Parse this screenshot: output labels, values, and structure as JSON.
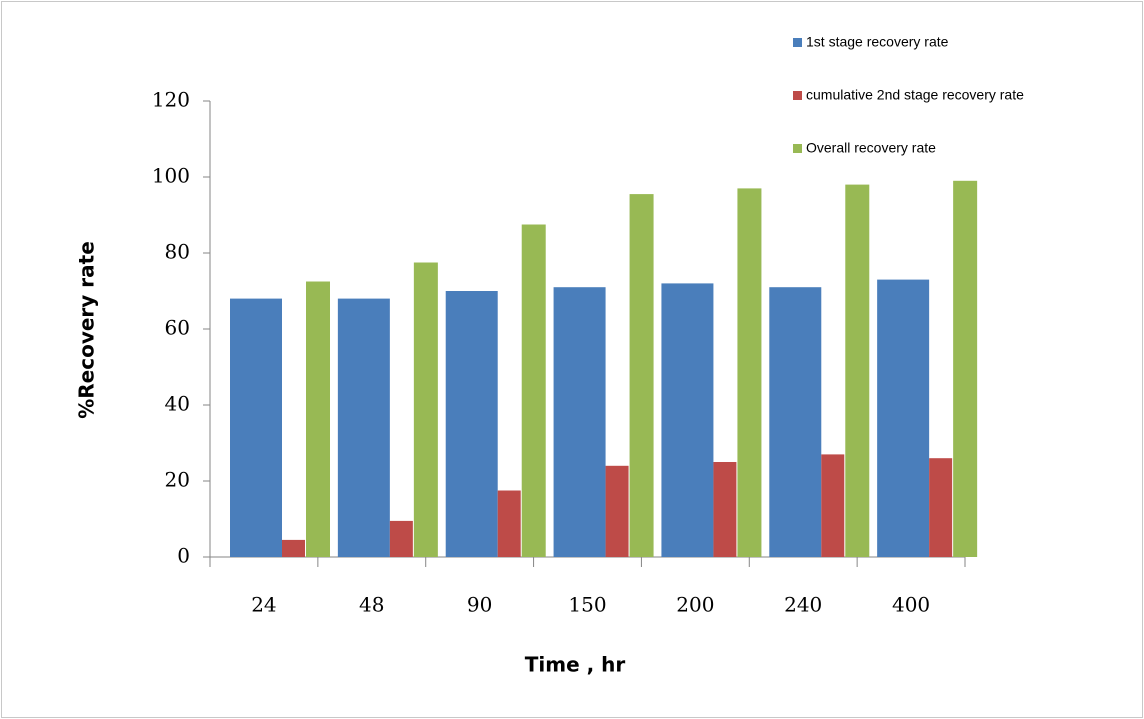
{
  "chart_data": {
    "type": "bar",
    "x_label": "Time , hr",
    "y_label": "%Recovery  rate",
    "categories": [
      "24",
      "48",
      "90",
      "150",
      "200",
      "240",
      "400"
    ],
    "series": [
      {
        "name": "1st stage recovery rate",
        "color": "#4a7ebb",
        "values": [
          68,
          68,
          70,
          71,
          72,
          71,
          73
        ]
      },
      {
        "name": "cumulative 2nd stage recovery rate",
        "color": "#be4b48",
        "values": [
          4.5,
          9.5,
          17.5,
          24,
          25,
          27,
          26
        ]
      },
      {
        "name": "Overall recovery rate",
        "color": "#98b954",
        "values": [
          72.5,
          77.5,
          87.5,
          95.5,
          97,
          98,
          99
        ]
      }
    ],
    "ylim": [
      0,
      120
    ],
    "yticks": [
      0,
      20,
      40,
      60,
      80,
      100,
      120
    ]
  }
}
